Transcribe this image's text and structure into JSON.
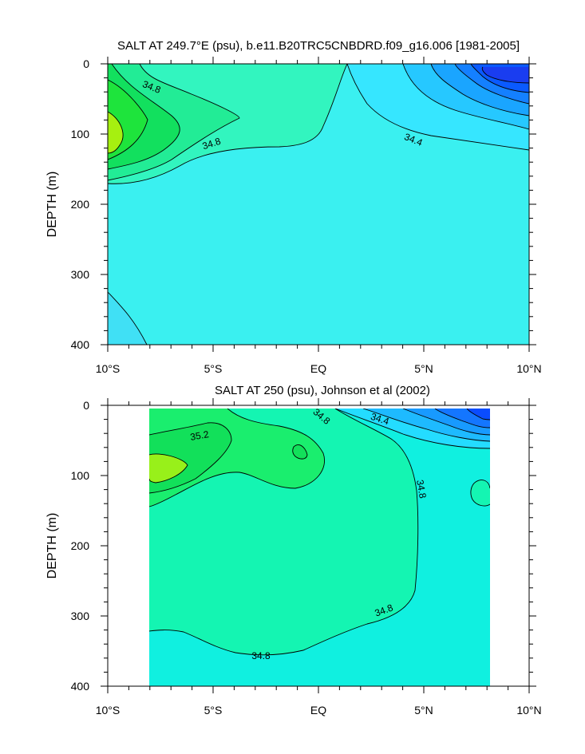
{
  "chart_data": [
    {
      "type": "contour",
      "title": "SALT AT 249.7°E (psu), b.e11.B20TRC5CNBDRD.f09_g16.006 [1981-2005]",
      "xlabel": "",
      "ylabel": "DEPTH (m)",
      "xlim": [
        -10,
        10
      ],
      "ylim": [
        400,
        0
      ],
      "x_ticks": [
        -10,
        -5,
        0,
        5,
        10
      ],
      "x_tick_labels": [
        "10°S",
        "5°S",
        "EQ",
        "5°N",
        "10°N"
      ],
      "y_ticks": [
        0,
        100,
        200,
        300,
        400
      ],
      "y_tick_labels": [
        "0",
        "100",
        "200",
        "300",
        "400"
      ],
      "contour_labels": [
        "34.8",
        "34.8",
        "34.4"
      ],
      "colors": {
        "background": "#3af0f0",
        "deep_low": "#40e0f5",
        "band_34_8": "#32f5bf",
        "band_35_0": "#22ec96",
        "band_35_2": "#12e05e",
        "band_35_4": "#1ee43c",
        "core": "#a6f010",
        "low_1": "#36e6ff",
        "low_2": "#26c8ff",
        "low_3": "#1aa5ff",
        "low_4": "#1480ff",
        "low_5": "#0a5aff",
        "low_6": "#1a3df0"
      }
    },
    {
      "type": "contour",
      "title": "SALT AT 250 (psu), Johnson et al (2002)",
      "xlabel": "",
      "ylabel": "DEPTH (m)",
      "xlim": [
        -10,
        10
      ],
      "ylim": [
        400,
        0
      ],
      "data_extent_x": [
        -8,
        8.2
      ],
      "data_extent_depth": [
        10,
        400
      ],
      "x_ticks": [
        -10,
        -5,
        0,
        5,
        10
      ],
      "x_tick_labels": [
        "10°S",
        "5°S",
        "EQ",
        "5°N",
        "10°N"
      ],
      "y_ticks": [
        0,
        100,
        200,
        300,
        400
      ],
      "y_tick_labels": [
        "0",
        "100",
        "200",
        "300",
        "400"
      ],
      "contour_labels": [
        "35.2",
        "34.8",
        "34.4",
        "34.8",
        "34.8",
        "34.8"
      ],
      "colors": {
        "background": "#10f0e0",
        "band_34_8": "#14f5b2",
        "band_35_0": "#1aee6e",
        "band_35_2": "#12e05a",
        "core": "#98f01a",
        "low_1": "#24dcff",
        "low_2": "#1ebaff",
        "low_3": "#189aff",
        "low_4": "#1476ff",
        "low_5": "#0a4cff"
      }
    }
  ]
}
